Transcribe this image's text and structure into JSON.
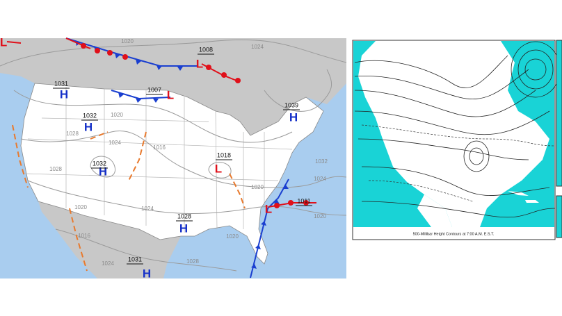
{
  "surface_map": {
    "centers": [
      {
        "symbol": "L"
      },
      {
        "symbol": "H",
        "pressure": 1031
      },
      {
        "symbol": "H",
        "pressure": 1032
      },
      {
        "symbol": "H",
        "pressure": 1032
      },
      {
        "symbol": "L",
        "pressure": 1007
      },
      {
        "symbol": "L",
        "pressure": 1008
      },
      {
        "symbol": "H",
        "pressure": 1039
      },
      {
        "symbol": "L",
        "pressure": 1018
      },
      {
        "symbol": "H",
        "pressure": 1028
      },
      {
        "symbol": "L",
        "pressure": 1011
      },
      {
        "symbol": "H",
        "pressure": 1031
      }
    ],
    "isobar_labels": [
      1020,
      1024,
      1020,
      1028,
      1024,
      1016,
      1028,
      1032,
      1024,
      1020,
      1020,
      1024,
      1020,
      1020,
      1016,
      1024,
      1028
    ]
  },
  "upper_air_map": {
    "caption": "500-Millibar Height Contours at 7:00 A.M. E.S.T."
  }
}
